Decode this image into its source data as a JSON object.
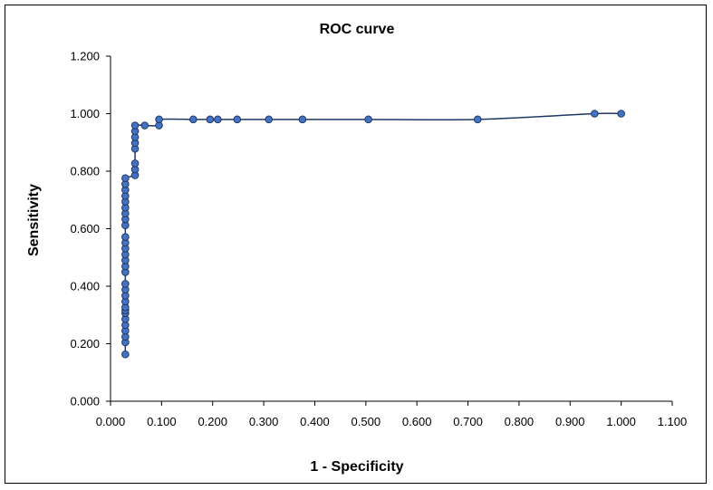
{
  "chart_data": {
    "type": "line",
    "title": "ROC curve",
    "xlabel": "1 - Specificity",
    "ylabel": "Sensitivity",
    "xlim": [
      0,
      1.1
    ],
    "ylim": [
      0,
      1.2
    ],
    "x_ticks": [
      "0.000",
      "0.100",
      "0.200",
      "0.300",
      "0.400",
      "0.500",
      "0.600",
      "0.700",
      "0.800",
      "0.900",
      "1.000",
      "1.100"
    ],
    "y_ticks": [
      "0.000",
      "0.200",
      "0.400",
      "0.600",
      "0.800",
      "1.000",
      "1.200"
    ],
    "grid": false,
    "legend": "none",
    "series": [
      {
        "name": "ROC",
        "line_color": "#203864",
        "marker_color": "#4472c4",
        "points": [
          [
            0.029,
            0.163
          ],
          [
            0.029,
            0.205
          ],
          [
            0.029,
            0.224
          ],
          [
            0.029,
            0.245
          ],
          [
            0.029,
            0.265
          ],
          [
            0.029,
            0.286
          ],
          [
            0.029,
            0.306
          ],
          [
            0.029,
            0.316
          ],
          [
            0.029,
            0.327
          ],
          [
            0.029,
            0.347
          ],
          [
            0.029,
            0.367
          ],
          [
            0.029,
            0.388
          ],
          [
            0.029,
            0.408
          ],
          [
            0.029,
            0.449
          ],
          [
            0.029,
            0.469
          ],
          [
            0.029,
            0.49
          ],
          [
            0.029,
            0.51
          ],
          [
            0.029,
            0.531
          ],
          [
            0.029,
            0.551
          ],
          [
            0.029,
            0.571
          ],
          [
            0.029,
            0.612
          ],
          [
            0.029,
            0.633
          ],
          [
            0.029,
            0.653
          ],
          [
            0.029,
            0.673
          ],
          [
            0.029,
            0.694
          ],
          [
            0.029,
            0.714
          ],
          [
            0.029,
            0.735
          ],
          [
            0.029,
            0.755
          ],
          [
            0.029,
            0.776
          ],
          [
            0.048,
            0.786
          ],
          [
            0.048,
            0.806
          ],
          [
            0.048,
            0.827
          ],
          [
            0.048,
            0.878
          ],
          [
            0.048,
            0.898
          ],
          [
            0.048,
            0.918
          ],
          [
            0.048,
            0.939
          ],
          [
            0.048,
            0.959
          ],
          [
            0.067,
            0.959
          ],
          [
            0.095,
            0.959
          ],
          [
            0.095,
            0.98
          ],
          [
            0.162,
            0.98
          ],
          [
            0.195,
            0.98
          ],
          [
            0.21,
            0.98
          ],
          [
            0.248,
            0.98
          ],
          [
            0.31,
            0.98
          ],
          [
            0.376,
            0.98
          ],
          [
            0.505,
            0.98
          ],
          [
            0.719,
            0.98
          ],
          [
            0.948,
            1.0
          ],
          [
            1.0,
            1.0
          ]
        ]
      }
    ]
  }
}
